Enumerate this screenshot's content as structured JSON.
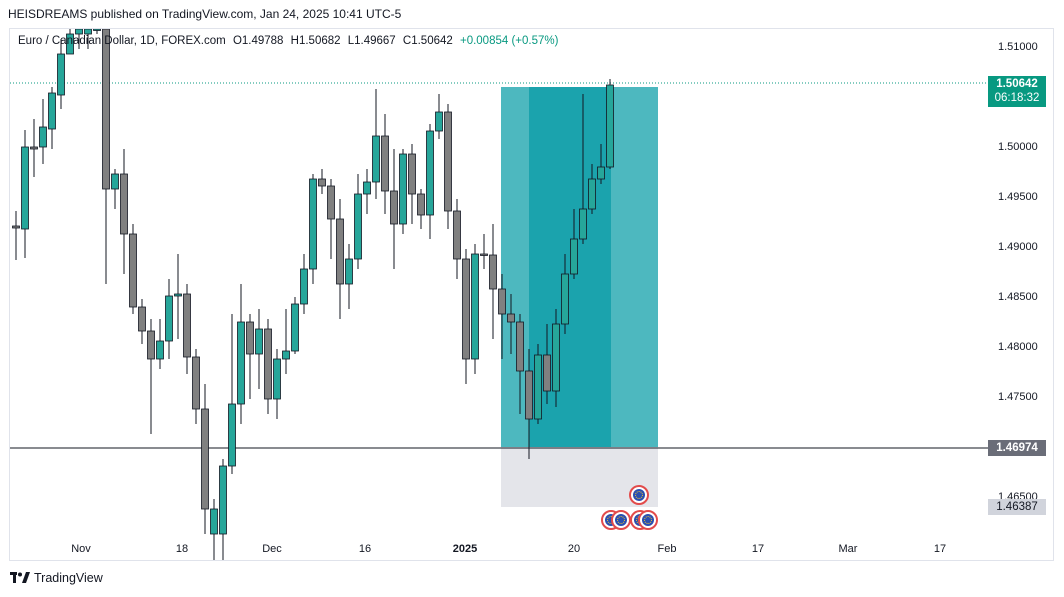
{
  "publisher": "HEISDREAMS published on TradingView.com, Jan 24, 2025 10:41 UTC-5",
  "legend": {
    "symbol": "Euro / Canadian Dollar, 1D, FOREX.com",
    "open": "O1.49788",
    "high": "H1.50682",
    "low": "L1.49667",
    "close": "C1.50642",
    "change": "+0.00854 (+0.57%)"
  },
  "price_axis": {
    "ticks": [
      "1.51000",
      "1.50000",
      "1.49500",
      "1.49000",
      "1.48500",
      "1.48000",
      "1.47500",
      "1.46500"
    ],
    "current_price": "1.50642",
    "countdown": "06:18:32",
    "level_price": "1.46974",
    "stop_price": "1.46387"
  },
  "time_axis": {
    "ticks": [
      "Nov",
      "18",
      "Dec",
      "16",
      "2025",
      "20",
      "Feb",
      "17",
      "Mar",
      "17"
    ]
  },
  "footer": {
    "brand": "TradingView"
  },
  "colors": {
    "bull": "#26a69a",
    "bear": "#808080",
    "position_zone": "#1ba3ad",
    "position_entry": "#4db8bf",
    "stop_zone": "#e4e5ea",
    "price_line": "#089981"
  }
}
